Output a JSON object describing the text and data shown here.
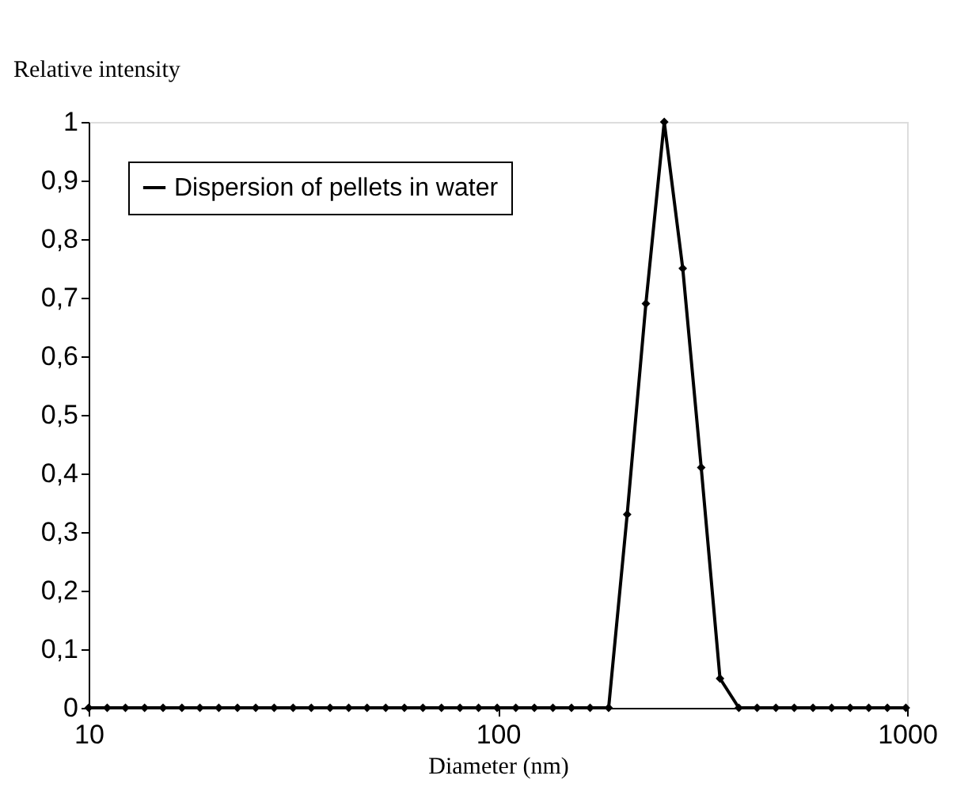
{
  "chart_data": {
    "type": "line",
    "xlabel": "Diameter (nm)",
    "ylabel": "Relative intensity",
    "x": [
      10,
      11.1,
      12.3,
      13.7,
      15.2,
      16.9,
      18.7,
      20.8,
      23.1,
      25.6,
      28.4,
      31.6,
      35.0,
      38.9,
      43.2,
      47.9,
      53.2,
      59.1,
      65.6,
      72.8,
      80.8,
      89.7,
      99.6,
      110.6,
      122.8,
      136.3,
      151.3,
      168.0,
      186.5,
      207,
      230,
      255,
      283,
      314,
      349,
      388,
      430,
      478,
      530,
      589,
      654,
      726,
      806,
      895,
      993
    ],
    "series": [
      {
        "name": "Dispersion of pellets in water",
        "color": "#000000",
        "values": [
          0,
          0,
          0,
          0,
          0,
          0,
          0,
          0,
          0,
          0,
          0,
          0,
          0,
          0,
          0,
          0,
          0,
          0,
          0,
          0,
          0,
          0,
          0,
          0,
          0,
          0,
          0,
          0,
          0,
          0.33,
          0.69,
          1,
          0.75,
          0.41,
          0.05,
          0,
          0,
          0,
          0,
          0,
          0,
          0,
          0,
          0,
          0
        ]
      }
    ],
    "xlim": [
      10,
      1000
    ],
    "xticks": [
      10,
      100,
      1000
    ],
    "log": "x",
    "ylim": [
      0,
      1
    ],
    "yticks": [
      {
        "value": 0,
        "label": "0"
      },
      {
        "value": 0.1,
        "label": "0,1"
      },
      {
        "value": 0.2,
        "label": "0,2"
      },
      {
        "value": 0.3,
        "label": "0,3"
      },
      {
        "value": 0.4,
        "label": "0,4"
      },
      {
        "value": 0.5,
        "label": "0,5"
      },
      {
        "value": 0.6,
        "label": "0,6"
      },
      {
        "value": 0.7,
        "label": "0,7"
      },
      {
        "value": 0.8,
        "label": "0,8"
      },
      {
        "value": 0.9,
        "label": "0,9"
      },
      {
        "value": 1,
        "label": "1"
      }
    ],
    "grid": false,
    "legend": "top left",
    "marker": "diamond",
    "line_style": "solid"
  }
}
